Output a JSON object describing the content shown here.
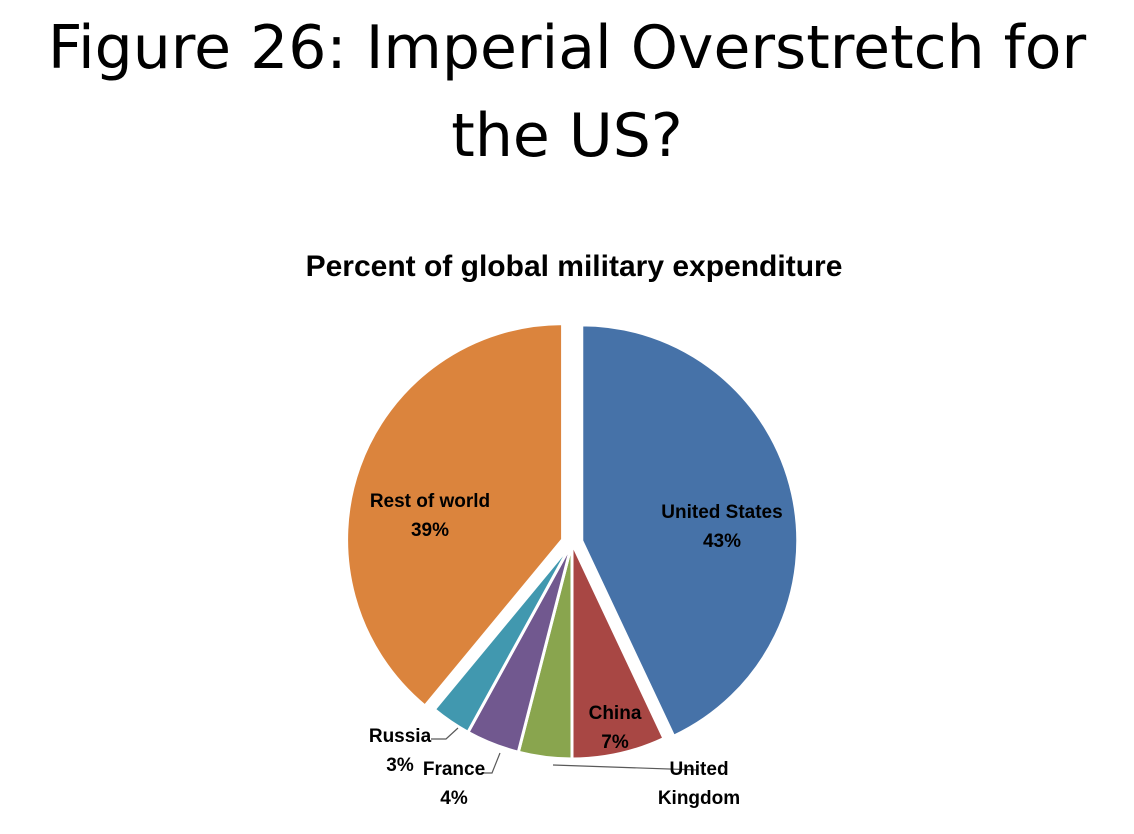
{
  "slide": {
    "title": "Figure 26: Imperial Overstretch for the US?"
  },
  "chart_data": {
    "type": "pie",
    "title": "Percent of global military expenditure",
    "legend": "none",
    "slices": [
      {
        "label": "United States",
        "label_lines": [
          "United States"
        ],
        "value": 43,
        "value_label": "43%",
        "color": "#4672A8",
        "exploded": true
      },
      {
        "label": "China",
        "label_lines": [
          "China"
        ],
        "value": 7,
        "value_label": "7%",
        "color": "#A84744",
        "exploded": false
      },
      {
        "label": "United Kingdom",
        "label_lines": [
          "United",
          "Kingdom"
        ],
        "value": 4,
        "value_label": "",
        "color": "#89A54E",
        "exploded": false
      },
      {
        "label": "France",
        "label_lines": [
          "France"
        ],
        "value": 4,
        "value_label": "4%",
        "color": "#71588F",
        "exploded": false
      },
      {
        "label": "Russia",
        "label_lines": [
          "Russia"
        ],
        "value": 3,
        "value_label": "3%",
        "color": "#4198AF",
        "exploded": false
      },
      {
        "label": "Rest of world",
        "label_lines": [
          "Rest of world"
        ],
        "value": 39,
        "value_label": "39%",
        "color": "#DB843D",
        "exploded": true
      }
    ]
  }
}
